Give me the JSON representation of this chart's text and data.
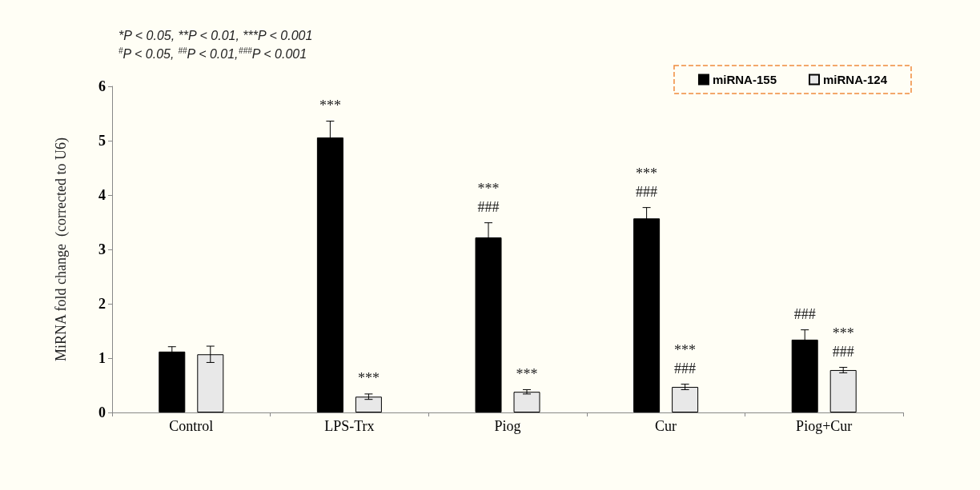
{
  "chart_data": {
    "type": "bar",
    "ylabel": "MiRNA fold change  (corrected to U6)",
    "categories": [
      "Control",
      "LPS-Trx",
      "Piog",
      "Cur",
      "Piog+Cur"
    ],
    "series": [
      {
        "name": "miRNA-155",
        "color": "#000000",
        "values": [
          1.12,
          5.06,
          3.22,
          3.57,
          1.34
        ],
        "errors": [
          0.09,
          0.3,
          0.27,
          0.2,
          0.18
        ],
        "value_labels": [
          null,
          "***",
          "***\n###",
          "***\n###",
          "###"
        ]
      },
      {
        "name": "miRNA-124",
        "color": "#e8e8e8",
        "values": [
          1.07,
          0.29,
          0.38,
          0.47,
          0.78
        ],
        "errors": [
          0.15,
          0.05,
          0.04,
          0.05,
          0.05
        ],
        "value_labels": [
          null,
          "***",
          "***",
          "***\n###",
          "***\n###"
        ]
      }
    ],
    "ylim": [
      0,
      6
    ],
    "yticks": [
      0,
      1,
      2,
      3,
      4,
      5,
      6
    ],
    "grid": false,
    "legend": "top right",
    "annotations": [
      "*P < 0.05, **P < 0.01, ***P < 0.001",
      "$^{#}$P < 0.05, $^{##}$P < 0.01,$^{###}$P < 0.001"
    ]
  }
}
